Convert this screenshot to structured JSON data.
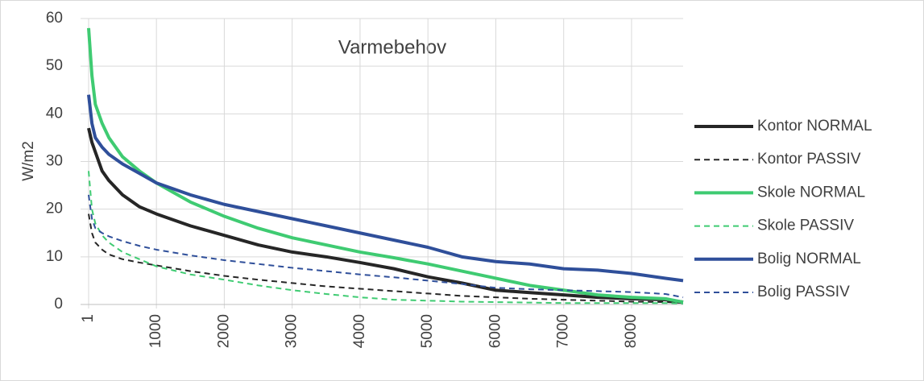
{
  "chart_data": {
    "type": "line",
    "title": "Varmebehov",
    "y_label": "W/m2",
    "x": [
      1,
      50,
      100,
      200,
      300,
      500,
      750,
      1000,
      1500,
      2000,
      2500,
      3000,
      3500,
      4000,
      4500,
      5000,
      5500,
      6000,
      6500,
      7000,
      7500,
      8000,
      8500,
      8760
    ],
    "xlim": [
      1,
      8760
    ],
    "xticks": [
      1,
      1000,
      2000,
      3000,
      4000,
      5000,
      6000,
      7000,
      8000
    ],
    "ylim": [
      0,
      60
    ],
    "yticks": [
      0,
      10,
      20,
      30,
      40,
      50,
      60
    ],
    "grid": true,
    "legend": "right",
    "series": [
      {
        "name": "Kontor NORMAL",
        "color": "#262626",
        "dashed": false,
        "values": [
          37,
          34,
          32,
          28,
          26,
          23,
          20.5,
          19,
          16.5,
          14.5,
          12.5,
          11,
          10,
          8.8,
          7.5,
          5.8,
          4.5,
          3,
          2.5,
          2,
          1.5,
          1.2,
          1,
          0.5
        ]
      },
      {
        "name": "Kontor PASSIV",
        "color": "#262626",
        "dashed": true,
        "values": [
          19,
          15,
          13,
          11.5,
          10.5,
          9.5,
          8.8,
          8.2,
          7,
          6,
          5.2,
          4.5,
          3.8,
          3.3,
          2.8,
          2.3,
          1.8,
          1.5,
          1.2,
          1,
          0.8,
          0.6,
          0.5,
          0.3
        ]
      },
      {
        "name": "Skole NORMAL",
        "color": "#3fcb72",
        "dashed": false,
        "values": [
          58,
          48,
          42,
          38,
          35,
          31,
          28,
          25.5,
          21.5,
          18.5,
          16,
          14,
          12.5,
          11,
          9.8,
          8.5,
          7,
          5.5,
          4,
          3,
          2,
          1.5,
          1.2,
          0.5
        ]
      },
      {
        "name": "Skole PASSIV",
        "color": "#3fcb72",
        "dashed": true,
        "values": [
          28,
          20,
          17,
          14.5,
          13,
          11,
          9.5,
          8,
          6.3,
          5.2,
          4,
          3,
          2.2,
          1.5,
          1,
          0.8,
          0.6,
          0.5,
          0.4,
          0.3,
          0.3,
          0.3,
          0.3,
          0.2
        ]
      },
      {
        "name": "Bolig NORMAL",
        "color": "#2f4f9a",
        "dashed": false,
        "values": [
          44,
          38,
          35,
          33,
          31.5,
          29.5,
          27.5,
          25.5,
          23,
          21,
          19.5,
          18,
          16.5,
          15,
          13.5,
          12,
          10,
          9,
          8.5,
          7.5,
          7.2,
          6.5,
          5.5,
          5
        ]
      },
      {
        "name": "Bolig PASSIV",
        "color": "#2f4f9a",
        "dashed": true,
        "values": [
          23,
          18,
          16,
          15,
          14.3,
          13.3,
          12.3,
          11.5,
          10.3,
          9.3,
          8.5,
          7.7,
          7,
          6.3,
          5.7,
          5,
          4.3,
          3.5,
          3.2,
          3,
          2.8,
          2.6,
          2.2,
          1.5
        ]
      }
    ]
  }
}
